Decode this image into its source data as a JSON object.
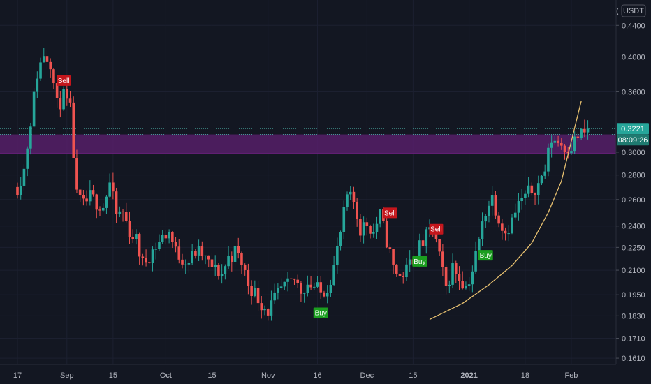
{
  "chart_data": {
    "type": "candlestick",
    "currency": "USDT",
    "corner_label": "(",
    "y_scale": "log",
    "ylim": [
      0.158,
      0.475
    ],
    "y_ticks": [
      "0.4400",
      "0.4000",
      "0.3600",
      "0.3000",
      "0.2800",
      "0.2600",
      "0.2400",
      "0.2250",
      "0.2100",
      "0.1950",
      "0.1830",
      "0.1710",
      "0.1610"
    ],
    "x_ticks": [
      {
        "label": "17",
        "day": 0
      },
      {
        "label": "Sep",
        "day": 15
      },
      {
        "label": "15",
        "day": 29
      },
      {
        "label": "Oct",
        "day": 45
      },
      {
        "label": "15",
        "day": 59
      },
      {
        "label": "Nov",
        "day": 76
      },
      {
        "label": "16",
        "day": 91
      },
      {
        "label": "Dec",
        "day": 106
      },
      {
        "label": "15",
        "day": 120
      },
      {
        "label": "2021",
        "day": 137
      },
      {
        "label": "18",
        "day": 154
      },
      {
        "label": "Feb",
        "day": 168
      }
    ],
    "last_price": "0.3221",
    "countdown": "08:09:26",
    "supply_zone": [
      0.2985,
      0.3165
    ],
    "dotted_levels": [
      0.3221,
      0.3165
    ],
    "colors": {
      "up": "#26a69a",
      "down": "#ef5350",
      "zone": "#9c27b0",
      "curve": "#e8c170",
      "buy": "#1b9e1f",
      "sell": "#c4161c",
      "background": "#131722"
    },
    "signals": [
      {
        "label": "Sell",
        "day": 14,
        "price": 0.372
      },
      {
        "label": "Buy",
        "day": 92,
        "price": 0.1845
      },
      {
        "label": "Sell",
        "day": 113,
        "price": 0.2495
      },
      {
        "label": "Sell",
        "day": 127,
        "price": 0.2375
      },
      {
        "label": "Buy",
        "day": 122,
        "price": 0.2155
      },
      {
        "label": "Buy",
        "day": 142,
        "price": 0.2195
      }
    ],
    "curve": [
      [
        125,
        0.181
      ],
      [
        135,
        0.19
      ],
      [
        143,
        0.201
      ],
      [
        150,
        0.213
      ],
      [
        156,
        0.228
      ],
      [
        161,
        0.25
      ],
      [
        165,
        0.275
      ],
      [
        168,
        0.31
      ],
      [
        171,
        0.35
      ]
    ],
    "waypoints": [
      [
        0,
        0.27
      ],
      [
        2,
        0.285
      ],
      [
        4,
        0.33
      ],
      [
        6,
        0.38
      ],
      [
        8,
        0.405
      ],
      [
        10,
        0.395
      ],
      [
        12,
        0.345
      ],
      [
        14,
        0.355
      ],
      [
        16,
        0.34
      ],
      [
        18,
        0.262
      ],
      [
        20,
        0.255
      ],
      [
        22,
        0.262
      ],
      [
        24,
        0.258
      ],
      [
        26,
        0.255
      ],
      [
        28,
        0.273
      ],
      [
        30,
        0.248
      ],
      [
        32,
        0.25
      ],
      [
        34,
        0.236
      ],
      [
        36,
        0.23
      ],
      [
        38,
        0.214
      ],
      [
        40,
        0.22
      ],
      [
        42,
        0.226
      ],
      [
        44,
        0.232
      ],
      [
        46,
        0.236
      ],
      [
        48,
        0.222
      ],
      [
        50,
        0.218
      ],
      [
        52,
        0.216
      ],
      [
        54,
        0.222
      ],
      [
        56,
        0.22
      ],
      [
        58,
        0.214
      ],
      [
        60,
        0.21
      ],
      [
        62,
        0.208
      ],
      [
        64,
        0.218
      ],
      [
        66,
        0.222
      ],
      [
        68,
        0.215
      ],
      [
        70,
        0.202
      ],
      [
        72,
        0.196
      ],
      [
        74,
        0.19
      ],
      [
        76,
        0.186
      ],
      [
        78,
        0.192
      ],
      [
        80,
        0.198
      ],
      [
        82,
        0.2
      ],
      [
        84,
        0.204
      ],
      [
        86,
        0.198
      ],
      [
        88,
        0.202
      ],
      [
        90,
        0.2
      ],
      [
        92,
        0.196
      ],
      [
        94,
        0.2
      ],
      [
        96,
        0.212
      ],
      [
        98,
        0.235
      ],
      [
        100,
        0.262
      ],
      [
        102,
        0.258
      ],
      [
        104,
        0.238
      ],
      [
        106,
        0.242
      ],
      [
        108,
        0.236
      ],
      [
        110,
        0.248
      ],
      [
        112,
        0.23
      ],
      [
        114,
        0.212
      ],
      [
        116,
        0.206
      ],
      [
        118,
        0.21
      ],
      [
        120,
        0.218
      ],
      [
        122,
        0.225
      ],
      [
        124,
        0.232
      ],
      [
        126,
        0.24
      ],
      [
        128,
        0.218
      ],
      [
        130,
        0.199
      ],
      [
        132,
        0.212
      ],
      [
        134,
        0.206
      ],
      [
        136,
        0.2
      ],
      [
        138,
        0.21
      ],
      [
        140,
        0.23
      ],
      [
        142,
        0.252
      ],
      [
        144,
        0.262
      ],
      [
        146,
        0.246
      ],
      [
        148,
        0.236
      ],
      [
        150,
        0.244
      ],
      [
        152,
        0.256
      ],
      [
        154,
        0.262
      ],
      [
        156,
        0.268
      ],
      [
        158,
        0.272
      ],
      [
        160,
        0.285
      ],
      [
        162,
        0.312
      ],
      [
        164,
        0.31
      ],
      [
        166,
        0.305
      ],
      [
        168,
        0.306
      ],
      [
        170,
        0.315
      ],
      [
        172,
        0.318
      ],
      [
        173,
        0.3221
      ]
    ]
  }
}
